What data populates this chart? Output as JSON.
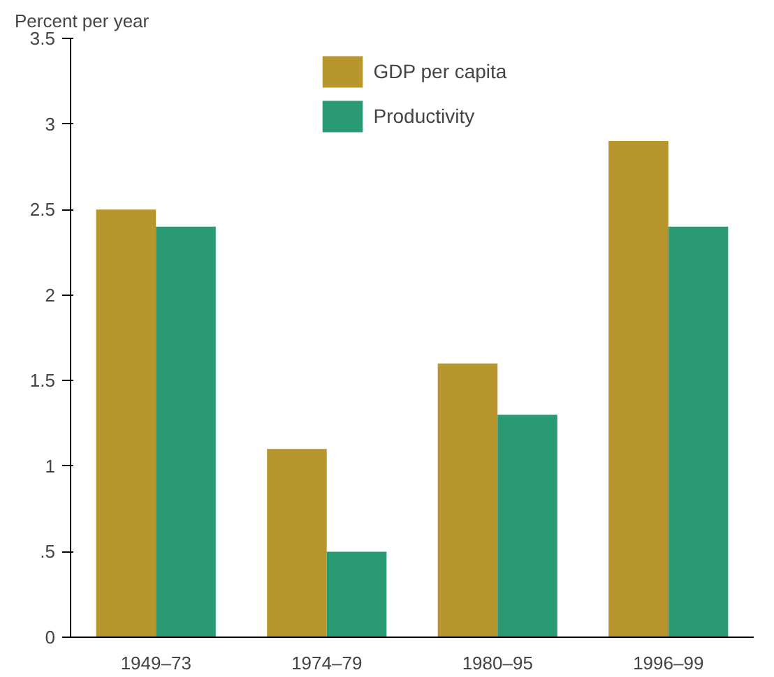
{
  "chart_data": {
    "type": "bar",
    "ylabel": "Percent per year",
    "categories": [
      "1949–73",
      "1974–79",
      "1980–95",
      "1996–99"
    ],
    "series": [
      {
        "name": "GDP per capita",
        "color": "#b8962e",
        "values": [
          2.5,
          1.1,
          1.6,
          2.9
        ]
      },
      {
        "name": "Productivity",
        "color": "#2a9a74",
        "values": [
          2.4,
          0.5,
          1.3,
          2.4
        ]
      }
    ],
    "ylim": [
      0,
      3.5
    ],
    "yticks": [
      0,
      {
        "value": 0.5,
        "label": ".5"
      },
      1,
      1.5,
      2,
      2.5,
      3,
      3.5
    ],
    "grid": false,
    "legend": "top"
  }
}
